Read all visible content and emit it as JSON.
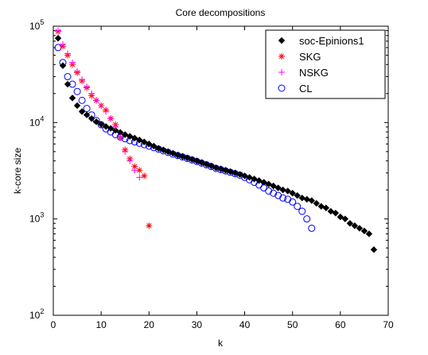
{
  "chart_data": {
    "type": "scatter",
    "title": "Core decompositions",
    "xlabel": "k",
    "ylabel": "k-core size",
    "xlim": [
      0,
      70
    ],
    "ylim": [
      100,
      100000
    ],
    "yscale": "log",
    "grid": false,
    "legend_position": "top-right",
    "x_ticks": [
      "0",
      "10",
      "20",
      "30",
      "40",
      "50",
      "60",
      "70"
    ],
    "y_ticks": [
      {
        "base": "10",
        "exp": "2"
      },
      {
        "base": "10",
        "exp": "3"
      },
      {
        "base": "10",
        "exp": "4"
      },
      {
        "base": "10",
        "exp": "5"
      }
    ],
    "series": [
      {
        "name": "soc-Epinions1",
        "marker": "diamond",
        "color": "#000000",
        "x": [
          1,
          2,
          3,
          4,
          5,
          6,
          7,
          8,
          9,
          10,
          11,
          12,
          13,
          14,
          15,
          16,
          17,
          18,
          19,
          20,
          21,
          22,
          23,
          24,
          25,
          26,
          27,
          28,
          29,
          30,
          31,
          32,
          33,
          34,
          35,
          36,
          37,
          38,
          39,
          40,
          41,
          42,
          43,
          44,
          45,
          46,
          47,
          48,
          49,
          50,
          51,
          52,
          53,
          54,
          55,
          56,
          57,
          58,
          59,
          60,
          61,
          62,
          63,
          64,
          65,
          66,
          67
        ],
        "y": [
          75000,
          39000,
          25000,
          18000,
          15000,
          13000,
          12000,
          11000,
          10200,
          9600,
          9100,
          8700,
          8300,
          7900,
          7500,
          7200,
          6900,
          6600,
          6300,
          6000,
          5700,
          5400,
          5200,
          5000,
          4800,
          4600,
          4450,
          4300,
          4150,
          4000,
          3850,
          3700,
          3550,
          3400,
          3300,
          3200,
          3100,
          3000,
          2900,
          2800,
          2700,
          2600,
          2500,
          2400,
          2300,
          2200,
          2100,
          2000,
          1950,
          1850,
          1750,
          1650,
          1600,
          1550,
          1450,
          1350,
          1300,
          1200,
          1150,
          1050,
          1000,
          900,
          850,
          800,
          750,
          700,
          480
        ]
      },
      {
        "name": "SKG",
        "marker": "asterisk",
        "color": "#ff0000",
        "x": [
          1,
          2,
          3,
          4,
          5,
          6,
          7,
          8,
          9,
          10,
          11,
          12,
          13,
          14,
          15,
          16,
          17,
          18,
          19,
          20
        ],
        "y": [
          88000,
          62000,
          50000,
          40000,
          33000,
          27000,
          23000,
          19000,
          17000,
          15000,
          13500,
          11000,
          9500,
          7000,
          5200,
          4200,
          3500,
          3200,
          2800,
          850
        ]
      },
      {
        "name": "NSKG",
        "marker": "plus",
        "color": "#ff00ff",
        "x": [
          1,
          2,
          3,
          4,
          5,
          6,
          7,
          8,
          9,
          10,
          11,
          12,
          13,
          14,
          15,
          16,
          17,
          18
        ],
        "y": [
          90000,
          65000,
          52000,
          42000,
          34000,
          28000,
          23500,
          20000,
          17000,
          15000,
          13000,
          11000,
          9000,
          7000,
          5000,
          4000,
          3200,
          2700
        ]
      },
      {
        "name": "CL",
        "marker": "circle",
        "color": "#0000ff",
        "x": [
          1,
          2,
          3,
          4,
          5,
          6,
          7,
          8,
          9,
          10,
          11,
          12,
          13,
          14,
          15,
          16,
          17,
          18,
          19,
          20,
          21,
          22,
          23,
          24,
          25,
          26,
          27,
          28,
          29,
          30,
          31,
          32,
          33,
          34,
          35,
          36,
          37,
          38,
          39,
          40,
          41,
          42,
          43,
          44,
          45,
          46,
          47,
          48,
          49,
          50,
          51,
          52,
          53,
          54
        ],
        "y": [
          60000,
          42000,
          30000,
          25000,
          21000,
          17000,
          14000,
          12000,
          10500,
          9500,
          8600,
          8000,
          7500,
          7100,
          6800,
          6500,
          6300,
          6100,
          5900,
          5700,
          5500,
          5300,
          5100,
          4900,
          4700,
          4550,
          4400,
          4250,
          4100,
          3950,
          3800,
          3650,
          3500,
          3350,
          3250,
          3150,
          3050,
          2950,
          2850,
          2700,
          2550,
          2400,
          2250,
          2100,
          1950,
          1850,
          1750,
          1650,
          1600,
          1500,
          1350,
          1200,
          1000,
          800
        ]
      }
    ]
  }
}
